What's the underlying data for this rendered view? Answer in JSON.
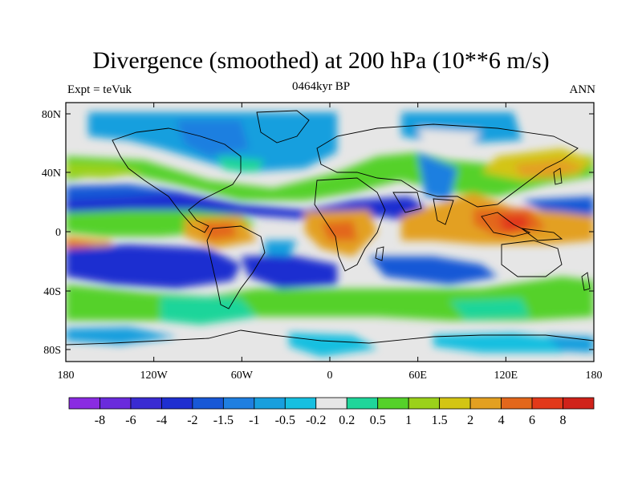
{
  "title": "Divergence (smoothed) at 200 hPa (10**6 m/s)",
  "left_label": "Expt = teVuk",
  "center_label": "0464kyr BP",
  "right_label": "ANN",
  "lon_ticks": [
    "180",
    "120W",
    "60W",
    "0",
    "60E",
    "120E",
    "180"
  ],
  "lat_ticks": [
    "80N",
    "40N",
    "0",
    "40S",
    "80S"
  ],
  "colorbar": {
    "labels": [
      "-8",
      "-6",
      "-4",
      "-2",
      "-1.5",
      "-1",
      "-0.5",
      "-0.2",
      "0.2",
      "0.5",
      "1",
      "1.5",
      "2",
      "4",
      "6",
      "8"
    ],
    "colors": [
      "#8a2be2",
      "#6a2bdc",
      "#3a2bd2",
      "#1f2fd0",
      "#1858d6",
      "#1f7fe0",
      "#189fde",
      "#17bfe0",
      "#e6e6e6",
      "#1fd59a",
      "#55d12a",
      "#9bd11a",
      "#d3c513",
      "#e3a021",
      "#e3671b",
      "#e2391a",
      "#d0221a"
    ]
  },
  "colors": {
    "land_background": "#e6e6e6",
    "coastline": "#000000"
  }
}
